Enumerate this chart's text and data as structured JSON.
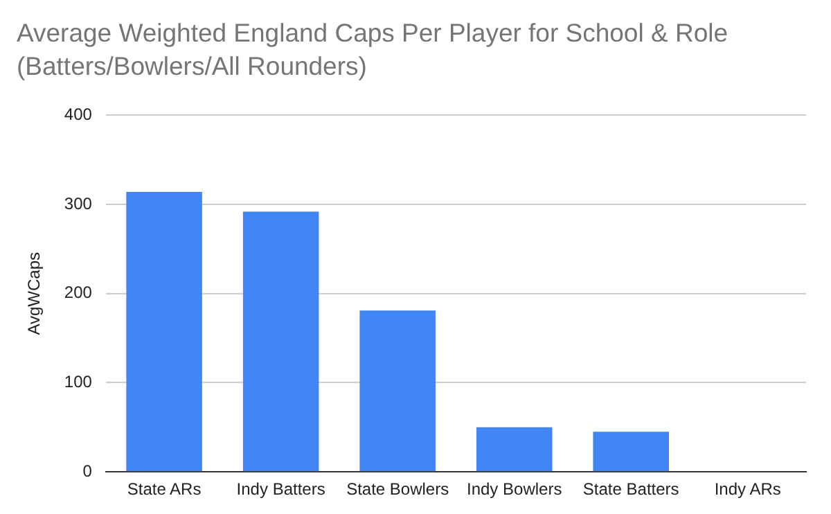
{
  "chart_data": {
    "type": "bar",
    "title": "Average Weighted England Caps Per Player for School & Role (Batters/Bowlers/All Rounders)",
    "ylabel": "AvgWCaps",
    "categories": [
      "State ARs",
      "Indy Batters",
      "State Bowlers",
      "Indy Bowlers",
      "State Batters",
      "Indy ARs"
    ],
    "values": [
      314,
      292,
      181,
      50,
      45,
      0
    ],
    "color": "#4285f4",
    "ylim": [
      0,
      400
    ],
    "yticks": [
      0,
      100,
      200,
      300,
      400
    ],
    "grid": "y"
  }
}
